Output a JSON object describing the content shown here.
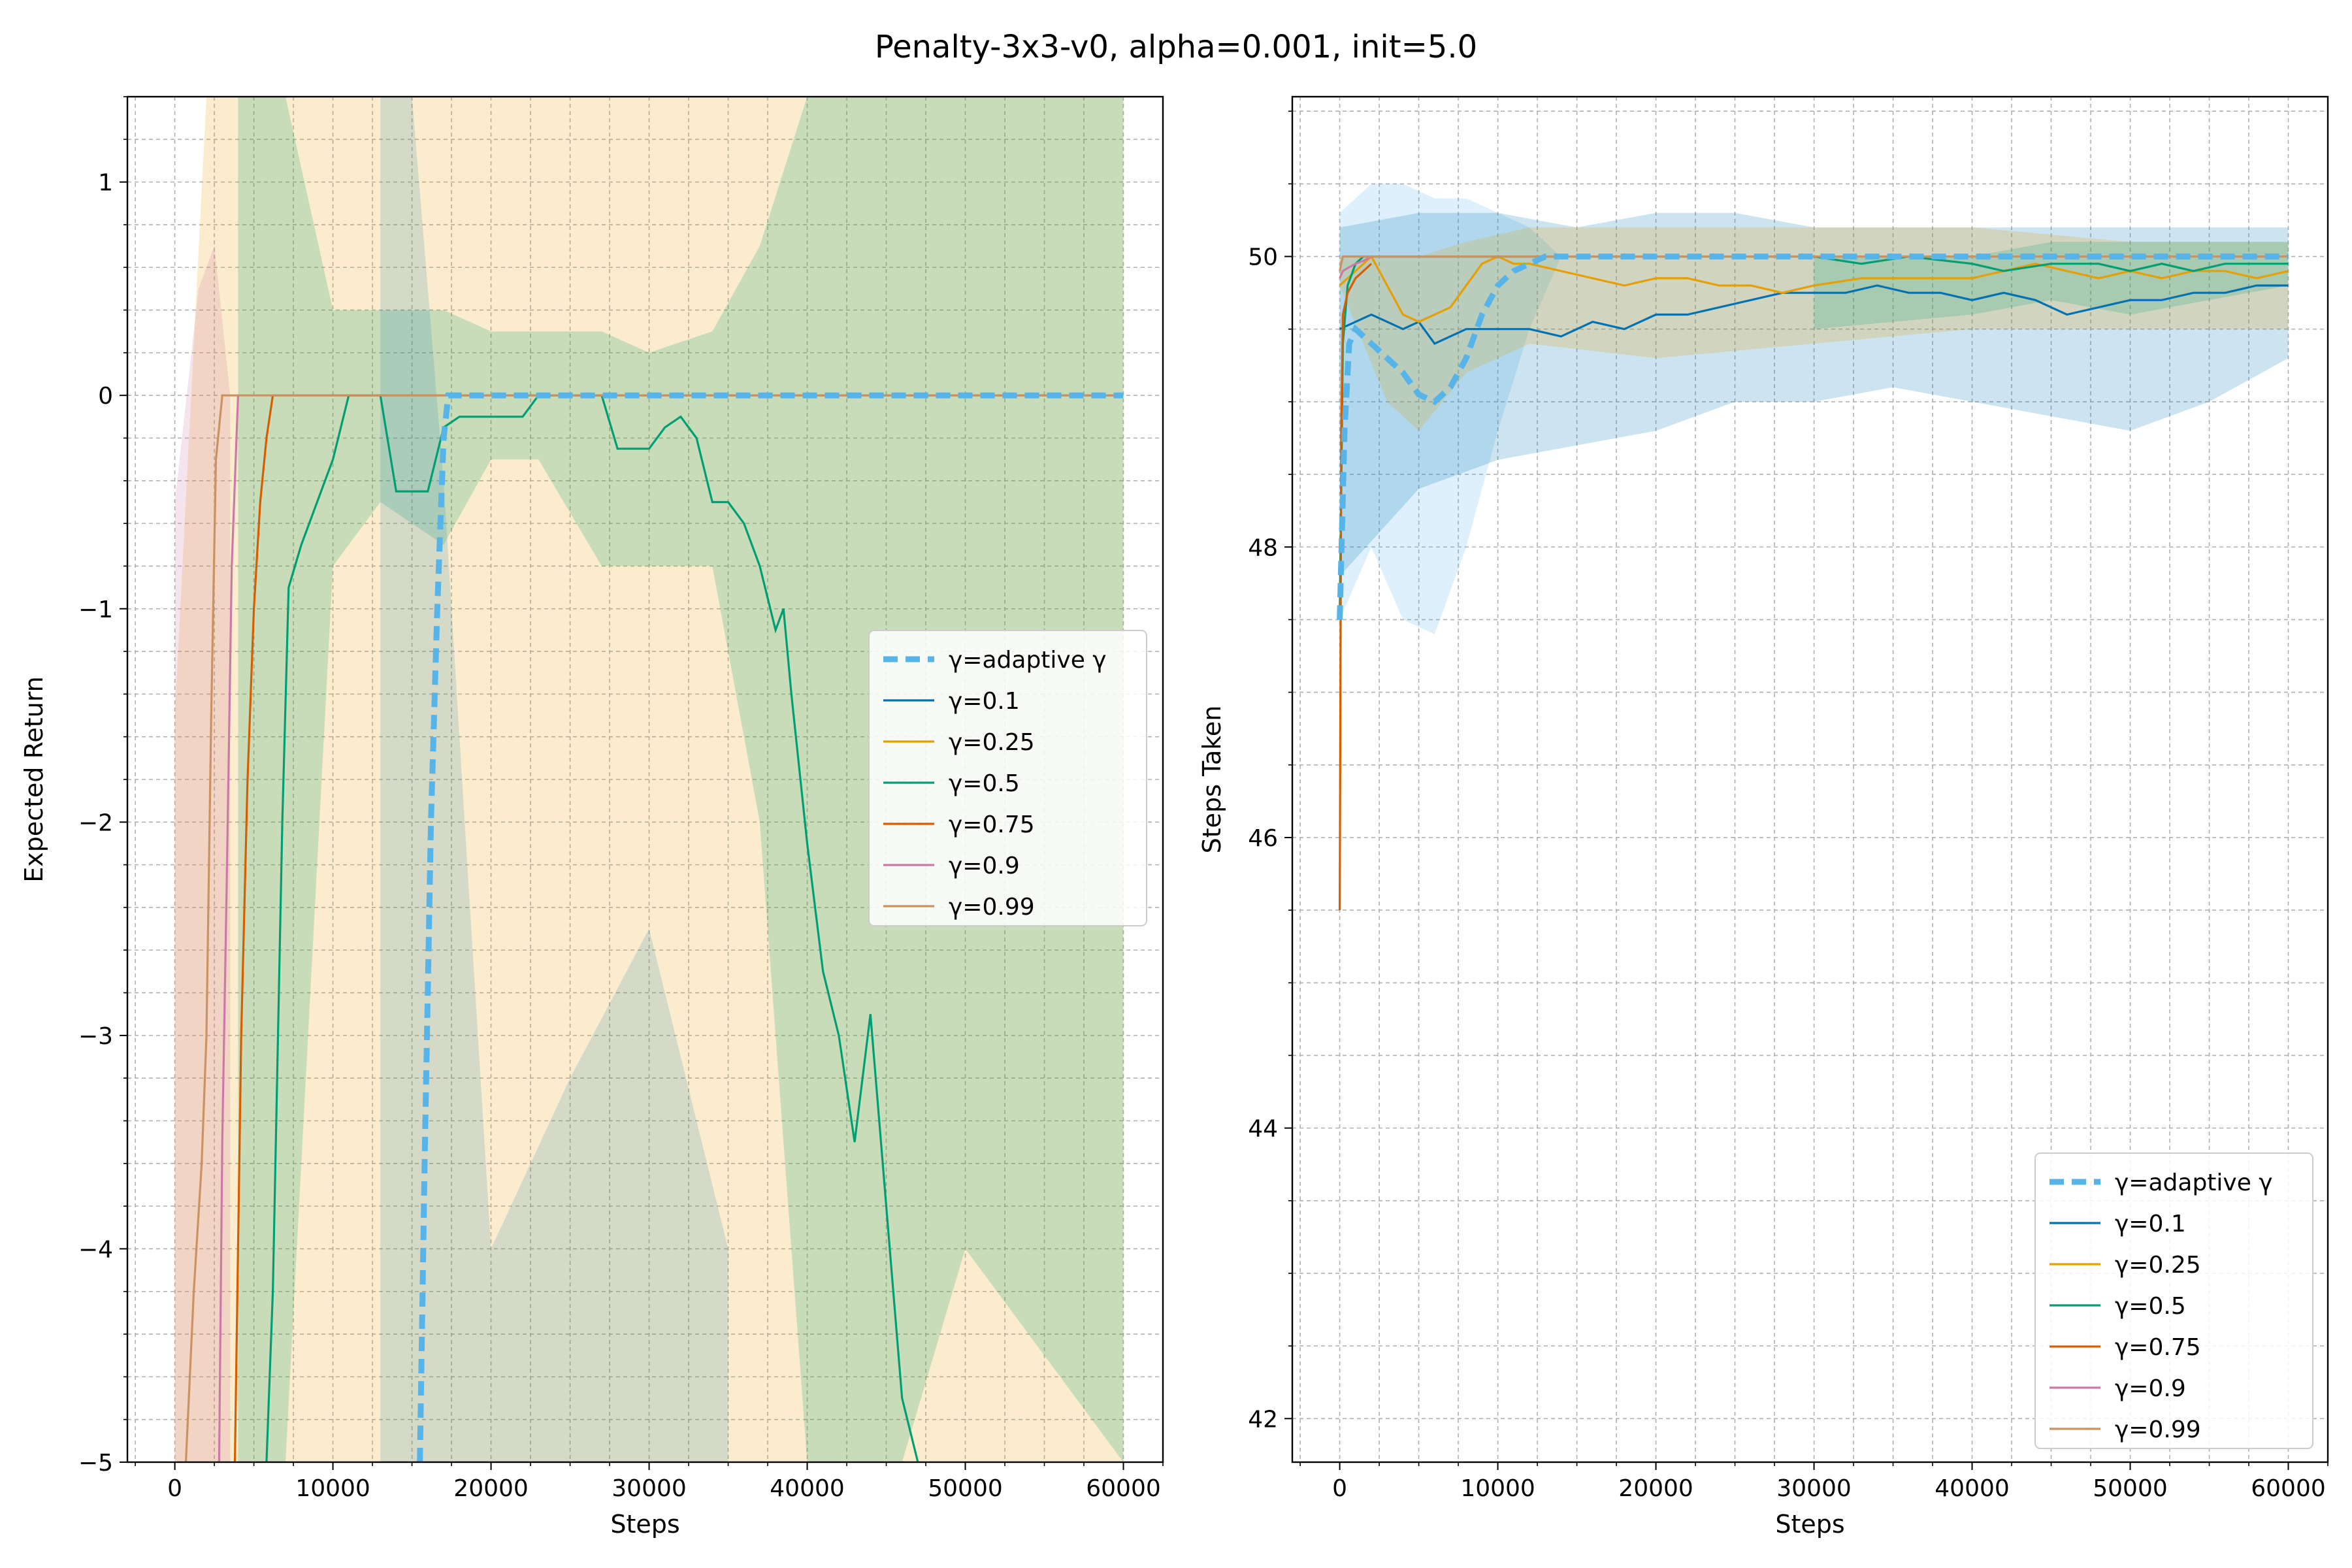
{
  "figure": {
    "title": "Penalty-3x3-v0, alpha=0.001, init=5.0"
  },
  "series_styles": [
    {
      "key": "adaptive",
      "color": "#56b4e9",
      "dashed": true,
      "width": 3
    },
    {
      "key": "g0.1",
      "color": "#0072b2"
    },
    {
      "key": "g0.25",
      "color": "#e69f00"
    },
    {
      "key": "g0.5",
      "color": "#009e73"
    },
    {
      "key": "g0.75",
      "color": "#d55e00"
    },
    {
      "key": "g0.9",
      "color": "#cc79a7"
    },
    {
      "key": "g0.99",
      "color": "#ca9161"
    }
  ],
  "chart_data": [
    {
      "type": "line",
      "title": "",
      "xlabel": "Steps",
      "ylabel": "Expected Return",
      "xlim": [
        -3000,
        62500
      ],
      "ylim": [
        -5,
        1.4
      ],
      "xticks": [
        0,
        10000,
        20000,
        30000,
        40000,
        50000,
        60000
      ],
      "yticks": [
        1,
        0,
        -1,
        -2,
        -3,
        -4,
        -5
      ],
      "ytick_labels": [
        "1",
        "0",
        "−1",
        "−2",
        "−3",
        "−4",
        "−5"
      ],
      "grid": true,
      "legend_position": "center-right",
      "legend": [
        "γ=adaptive γ",
        "γ=0.1",
        "γ=0.25",
        "γ=0.5",
        "γ=0.75",
        "γ=0.9",
        "γ=0.99"
      ],
      "bands": [
        {
          "key": "g0.25",
          "opacity": 0.2,
          "x": [
            0,
            2000,
            4000,
            8000,
            15000,
            20000,
            25000,
            30000,
            38000,
            40000,
            45000,
            50000,
            55000,
            60000
          ],
          "lo": [
            -5,
            -5,
            -5,
            -5,
            -5,
            -5,
            -5,
            -5,
            -5,
            -5,
            -5,
            -5,
            -5,
            -5
          ],
          "hi": [
            -1.5,
            1.4,
            1.4,
            1.4,
            1.4,
            1.4,
            1.4,
            1.4,
            1.4,
            1.4,
            1.4,
            1.4,
            1.4,
            1.4
          ]
        },
        {
          "key": "g0.5",
          "opacity": 0.2,
          "x": [
            4000,
            7000,
            10000,
            13000,
            17000,
            20000,
            23000,
            27000,
            30000,
            34000,
            37000,
            40000,
            42000,
            44000,
            46000,
            50000,
            55000,
            60000
          ],
          "lo": [
            -5,
            -5,
            -0.8,
            -0.5,
            -0.7,
            -0.3,
            -0.3,
            -0.8,
            -0.8,
            -0.8,
            -2.0,
            -5,
            -5,
            -5,
            -5,
            -4.0,
            -4.5,
            -5
          ],
          "hi": [
            1.4,
            1.4,
            0.4,
            0.4,
            0.4,
            0.3,
            0.3,
            0.3,
            0.2,
            0.3,
            0.7,
            1.4,
            1.4,
            1.4,
            1.4,
            1.4,
            1.4,
            1.4
          ]
        },
        {
          "key": "g0.1",
          "opacity": 0.15,
          "x": [
            13000,
            15000,
            17000,
            20000,
            25000,
            30000,
            35000
          ],
          "lo": [
            -5,
            -5,
            -5,
            -5,
            -5,
            -5,
            -5
          ],
          "hi": [
            1.4,
            1.4,
            -0.4,
            -4.0,
            -3.2,
            -2.5,
            -4.0
          ]
        },
        {
          "key": "g0.9",
          "opacity": 0.2,
          "x": [
            0,
            1500,
            2500,
            3500
          ],
          "lo": [
            -5,
            -5,
            -5,
            -5
          ],
          "hi": [
            -0.5,
            0.5,
            0.7,
            0.0
          ]
        }
      ],
      "series": [
        {
          "name": "γ=adaptive γ",
          "key": "adaptive",
          "x": [
            15500,
            15800,
            16200,
            16600,
            17000,
            17300,
            18000,
            60000
          ],
          "y": [
            -5,
            -3.6,
            -2.0,
            -1.0,
            -0.2,
            0,
            0,
            0
          ]
        },
        {
          "name": "γ=0.1",
          "key": "g0.1",
          "x": [],
          "y": []
        },
        {
          "name": "γ=0.25",
          "key": "g0.25",
          "x": [],
          "y": []
        },
        {
          "name": "γ=0.5",
          "key": "g0.5",
          "x": [
            5800,
            6200,
            6800,
            7200,
            8000,
            9000,
            10000,
            11000,
            12000,
            13000,
            14000,
            16000,
            17000,
            18000,
            22000,
            23000,
            26000,
            27000,
            28000,
            30000,
            31000,
            32000,
            33000,
            34000,
            35000,
            36000,
            37000,
            38000,
            38500,
            39000,
            40000,
            41000,
            42000,
            43000,
            43500,
            44000,
            45000,
            46000,
            47000
          ],
          "y": [
            -5,
            -4.2,
            -2.0,
            -0.9,
            -0.7,
            -0.5,
            -0.3,
            0,
            0,
            0,
            -0.45,
            -0.45,
            -0.15,
            -0.1,
            -0.1,
            0,
            0,
            0,
            -0.25,
            -0.25,
            -0.15,
            -0.1,
            -0.2,
            -0.5,
            -0.5,
            -0.6,
            -0.8,
            -1.1,
            -1.0,
            -1.4,
            -2.1,
            -2.7,
            -3.0,
            -3.5,
            -3.2,
            -2.9,
            -3.8,
            -4.7,
            -5
          ]
        },
        {
          "name": "γ=0.75",
          "key": "g0.75",
          "x": [
            3800,
            4200,
            4600,
            5000,
            5400,
            5800,
            6200,
            60000
          ],
          "y": [
            -5,
            -3.0,
            -1.8,
            -1.0,
            -0.5,
            -0.2,
            0,
            0
          ]
        },
        {
          "name": "γ=0.9",
          "key": "g0.9",
          "x": [
            2800,
            3000,
            3300,
            3600,
            4000
          ],
          "y": [
            -5,
            -3.5,
            -2.2,
            -0.8,
            0
          ]
        },
        {
          "name": "γ=0.99",
          "key": "g0.99",
          "x": [
            700,
            1200,
            1700,
            2000,
            2300,
            2600,
            3000,
            60000
          ],
          "y": [
            -5,
            -4.2,
            -3.6,
            -3.0,
            -1.5,
            -0.3,
            0,
            0
          ]
        }
      ]
    },
    {
      "type": "line",
      "title": "",
      "xlabel": "Steps",
      "ylabel": "Steps Taken",
      "xlim": [
        -3000,
        62500
      ],
      "ylim": [
        41.7,
        51.1
      ],
      "xticks": [
        0,
        10000,
        20000,
        30000,
        40000,
        50000,
        60000
      ],
      "yticks": [
        42,
        44,
        46,
        48,
        50
      ],
      "ytick_labels": [
        "42",
        "44",
        "46",
        "48",
        "50"
      ],
      "grid": true,
      "legend_position": "lower-right",
      "legend": [
        "γ=adaptive γ",
        "γ=0.1",
        "γ=0.25",
        "γ=0.5",
        "γ=0.75",
        "γ=0.9",
        "γ=0.99"
      ],
      "bands": [
        {
          "key": "adaptive",
          "opacity": 0.2,
          "x": [
            0,
            2000,
            4000,
            6000,
            8000,
            10000,
            12000,
            14000,
            60000
          ],
          "lo": [
            47.5,
            48.0,
            47.5,
            47.4,
            48.0,
            48.8,
            49.5,
            50.0,
            50.0
          ],
          "hi": [
            50.3,
            50.5,
            50.5,
            50.4,
            50.4,
            50.3,
            50.2,
            50.0,
            50.0
          ]
        },
        {
          "key": "g0.1",
          "opacity": 0.2,
          "x": [
            0,
            5000,
            10000,
            15000,
            20000,
            25000,
            30000,
            35000,
            40000,
            45000,
            50000,
            55000,
            60000
          ],
          "lo": [
            47.8,
            48.4,
            48.6,
            48.7,
            48.8,
            49.0,
            49.0,
            49.1,
            49.0,
            48.9,
            48.8,
            49.0,
            49.3
          ],
          "hi": [
            50.2,
            50.3,
            50.3,
            50.2,
            50.3,
            50.3,
            50.2,
            50.2,
            50.2,
            50.2,
            50.2,
            50.2,
            50.2
          ]
        },
        {
          "key": "g0.25",
          "opacity": 0.2,
          "x": [
            0,
            3000,
            5000,
            8000,
            12000,
            20000,
            30000,
            40000,
            50000,
            60000
          ],
          "lo": [
            49.8,
            49.0,
            48.8,
            49.2,
            49.4,
            49.3,
            49.4,
            49.5,
            49.5,
            49.5
          ],
          "hi": [
            50.0,
            50.0,
            50.0,
            50.1,
            50.2,
            50.2,
            50.2,
            50.2,
            50.1,
            50.1
          ]
        },
        {
          "key": "g0.5",
          "opacity": 0.2,
          "x": [
            30000,
            40000,
            45000,
            50000,
            55000,
            60000
          ],
          "lo": [
            49.5,
            49.6,
            49.7,
            49.6,
            49.7,
            49.8
          ],
          "hi": [
            50.0,
            50.0,
            50.1,
            50.1,
            50.1,
            50.1
          ]
        }
      ],
      "series": [
        {
          "name": "γ=adaptive γ",
          "key": "adaptive",
          "x": [
            0,
            300,
            600,
            1000,
            2000,
            3000,
            4000,
            5000,
            6000,
            7000,
            8000,
            9000,
            10000,
            11000,
            12000,
            13000,
            60000
          ],
          "y": [
            47.5,
            48.8,
            49.4,
            49.5,
            49.4,
            49.3,
            49.2,
            49.05,
            49.0,
            49.1,
            49.3,
            49.6,
            49.8,
            49.9,
            49.95,
            50.0,
            50.0
          ]
        },
        {
          "name": "γ=0.1",
          "key": "g0.1",
          "x": [
            0,
            1000,
            2000,
            3000,
            4000,
            5000,
            6000,
            8000,
            10000,
            12000,
            14000,
            16000,
            18000,
            20000,
            22000,
            24000,
            26000,
            28000,
            30000,
            32000,
            34000,
            36000,
            38000,
            40000,
            42000,
            44000,
            46000,
            48000,
            50000,
            52000,
            54000,
            56000,
            58000,
            60000
          ],
          "y": [
            49.5,
            49.55,
            49.6,
            49.55,
            49.5,
            49.55,
            49.4,
            49.5,
            49.5,
            49.5,
            49.45,
            49.55,
            49.5,
            49.6,
            49.6,
            49.65,
            49.7,
            49.75,
            49.75,
            49.75,
            49.8,
            49.75,
            49.75,
            49.7,
            49.75,
            49.7,
            49.6,
            49.65,
            49.7,
            49.7,
            49.75,
            49.75,
            49.8,
            49.8
          ]
        },
        {
          "name": "γ=0.25",
          "key": "g0.25",
          "x": [
            0,
            1000,
            2000,
            3000,
            4000,
            5000,
            6000,
            7000,
            8000,
            9000,
            10000,
            11000,
            12000,
            14000,
            16000,
            18000,
            20000,
            22000,
            24000,
            26000,
            28000,
            30000,
            33000,
            36000,
            40000,
            42000,
            44000,
            46000,
            48000,
            50000,
            52000,
            54000,
            56000,
            58000,
            60000
          ],
          "y": [
            49.8,
            49.9,
            50.0,
            49.8,
            49.6,
            49.55,
            49.6,
            49.65,
            49.8,
            49.95,
            50.0,
            49.95,
            49.95,
            49.9,
            49.85,
            49.8,
            49.85,
            49.85,
            49.8,
            49.8,
            49.75,
            49.8,
            49.85,
            49.85,
            49.85,
            49.9,
            49.95,
            49.9,
            49.85,
            49.9,
            49.85,
            49.9,
            49.9,
            49.85,
            49.9
          ]
        },
        {
          "name": "γ=0.5",
          "key": "g0.5",
          "x": [
            0,
            200,
            500,
            1000,
            1500,
            2000,
            5000,
            10000,
            20000,
            30000,
            33000,
            36000,
            40000,
            42000,
            45000,
            48000,
            50000,
            52000,
            54000,
            56000,
            58000,
            60000
          ],
          "y": [
            47.5,
            49.4,
            49.8,
            49.95,
            50.0,
            50.0,
            50.0,
            50.0,
            50.0,
            50.0,
            49.95,
            50.0,
            49.95,
            49.9,
            49.95,
            49.95,
            49.9,
            49.95,
            49.9,
            49.95,
            49.95,
            49.95
          ]
        },
        {
          "name": "γ=0.75",
          "key": "g0.75",
          "x": [
            0,
            100,
            200,
            500,
            1000,
            1500,
            2000
          ],
          "y": [
            45.5,
            48.8,
            49.6,
            49.75,
            49.85,
            49.9,
            49.95
          ]
        },
        {
          "name": "γ=0.9",
          "key": "g0.9",
          "x": [
            0,
            200,
            500,
            1000,
            1500,
            2000
          ],
          "y": [
            49.85,
            49.9,
            49.92,
            49.95,
            49.97,
            50.0
          ]
        },
        {
          "name": "γ=0.99",
          "key": "g0.99",
          "x": [
            0,
            200,
            500,
            60000
          ],
          "y": [
            49.9,
            50.0,
            50.0,
            50.0
          ]
        }
      ]
    }
  ]
}
